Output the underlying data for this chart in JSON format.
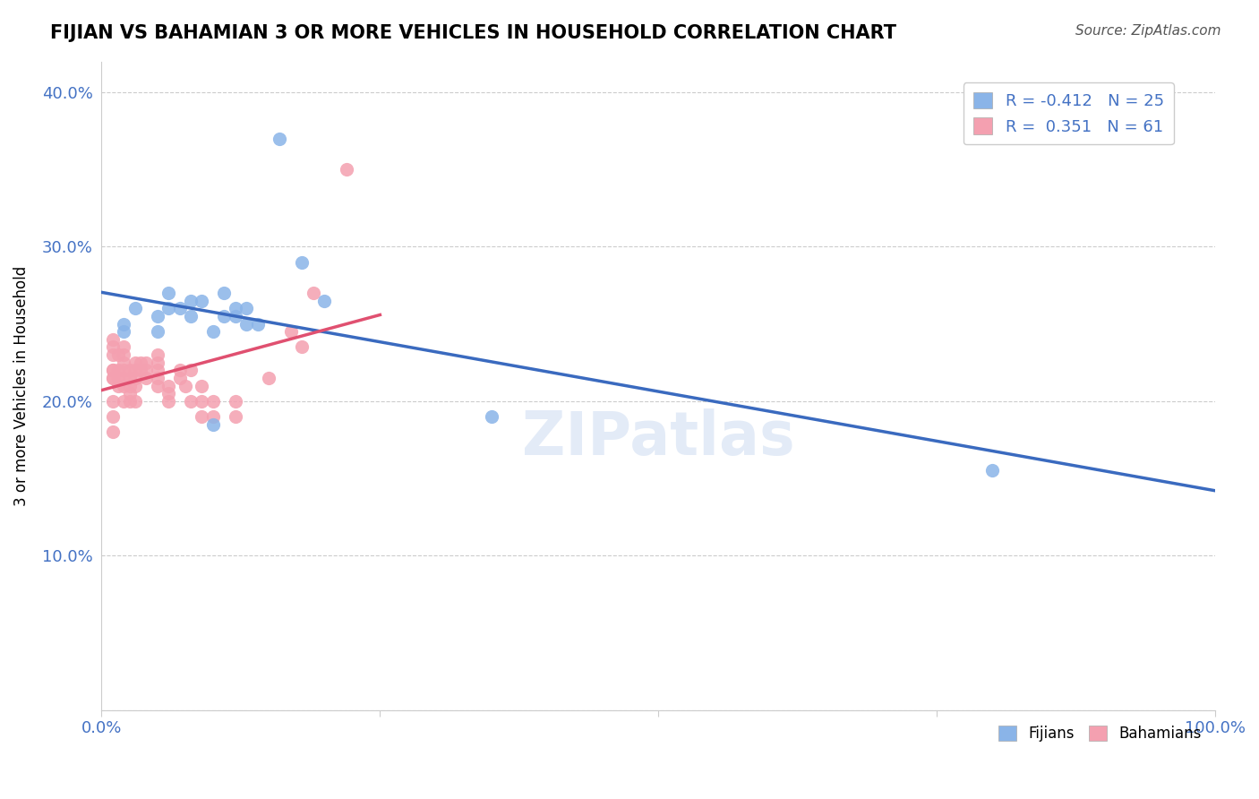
{
  "title": "FIJIAN VS BAHAMIAN 3 OR MORE VEHICLES IN HOUSEHOLD CORRELATION CHART",
  "source": "Source: ZipAtlas.com",
  "xlabel": "",
  "ylabel": "3 or more Vehicles in Household",
  "xlim": [
    0.0,
    1.0
  ],
  "ylim": [
    0.0,
    0.42
  ],
  "xticks": [
    0.0,
    0.25,
    0.5,
    0.75,
    1.0
  ],
  "xtick_labels": [
    "0.0%",
    "",
    "",
    "",
    "100.0%"
  ],
  "yticks": [
    0.0,
    0.1,
    0.2,
    0.3,
    0.4
  ],
  "ytick_labels": [
    "",
    "10.0%",
    "20.0%",
    "30.0%",
    "40.0%"
  ],
  "fijians_R": "-0.412",
  "fijians_N": "25",
  "bahamians_R": "0.351",
  "bahamians_N": "61",
  "fijian_color": "#8ab4e8",
  "bahamian_color": "#f4a0b0",
  "fijian_line_color": "#3a6abf",
  "bahamian_line_color": "#e05070",
  "watermark": "ZIPatlas",
  "fijians_x": [
    0.02,
    0.02,
    0.03,
    0.05,
    0.05,
    0.06,
    0.06,
    0.07,
    0.08,
    0.08,
    0.09,
    0.1,
    0.1,
    0.11,
    0.11,
    0.12,
    0.12,
    0.13,
    0.13,
    0.14,
    0.16,
    0.18,
    0.2,
    0.35,
    0.8
  ],
  "fijians_y": [
    0.25,
    0.245,
    0.26,
    0.245,
    0.255,
    0.27,
    0.26,
    0.26,
    0.265,
    0.255,
    0.265,
    0.245,
    0.185,
    0.255,
    0.27,
    0.26,
    0.255,
    0.26,
    0.25,
    0.25,
    0.37,
    0.29,
    0.265,
    0.19,
    0.155
  ],
  "bahamians_x": [
    0.01,
    0.01,
    0.01,
    0.01,
    0.01,
    0.01,
    0.01,
    0.01,
    0.01,
    0.01,
    0.015,
    0.015,
    0.015,
    0.015,
    0.02,
    0.02,
    0.02,
    0.02,
    0.02,
    0.02,
    0.02,
    0.025,
    0.025,
    0.025,
    0.025,
    0.025,
    0.03,
    0.03,
    0.03,
    0.03,
    0.03,
    0.035,
    0.035,
    0.04,
    0.04,
    0.04,
    0.05,
    0.05,
    0.05,
    0.05,
    0.05,
    0.06,
    0.06,
    0.06,
    0.07,
    0.07,
    0.075,
    0.08,
    0.08,
    0.09,
    0.09,
    0.09,
    0.1,
    0.1,
    0.12,
    0.12,
    0.15,
    0.17,
    0.18,
    0.19,
    0.22
  ],
  "bahamians_y": [
    0.18,
    0.19,
    0.2,
    0.215,
    0.215,
    0.22,
    0.22,
    0.23,
    0.235,
    0.24,
    0.21,
    0.215,
    0.22,
    0.23,
    0.2,
    0.21,
    0.215,
    0.22,
    0.225,
    0.23,
    0.235,
    0.2,
    0.205,
    0.21,
    0.215,
    0.22,
    0.2,
    0.21,
    0.215,
    0.22,
    0.225,
    0.22,
    0.225,
    0.215,
    0.22,
    0.225,
    0.21,
    0.215,
    0.22,
    0.225,
    0.23,
    0.2,
    0.205,
    0.21,
    0.215,
    0.22,
    0.21,
    0.2,
    0.22,
    0.19,
    0.2,
    0.21,
    0.19,
    0.2,
    0.19,
    0.2,
    0.215,
    0.245,
    0.235,
    0.27,
    0.35
  ]
}
